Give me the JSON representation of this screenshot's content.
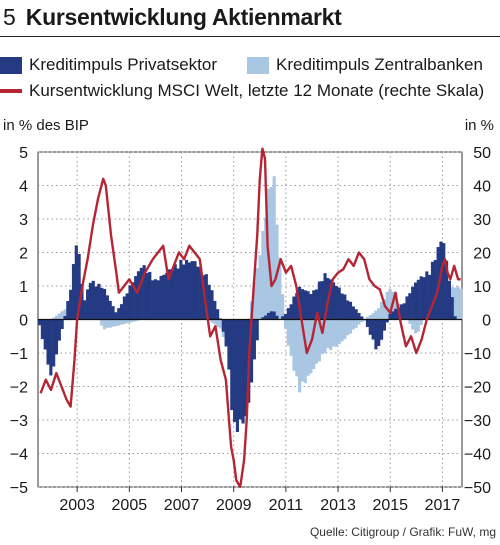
{
  "figure_number": "5",
  "title": "Kursentwicklung Aktienmarkt",
  "source": "Quelle: Citigroup / Grafik: FuW, mg",
  "colors": {
    "private": "#243a83",
    "central": "#a9c6e3",
    "msci": "#b62534",
    "grid": "#9a9a9a"
  },
  "chart_data": {
    "type": "bar+line",
    "title": "Kursentwicklung Aktienmarkt",
    "legend": {
      "private": "Kreditimpuls Privatsektor",
      "central": "Kreditimpuls Zentralbanken",
      "msci": "Kursentwicklung MSCI Welt, letzte 12 Monate (rechte Skala)"
    },
    "left_axis": {
      "label": "in % des BIP",
      "min": -5,
      "max": 5,
      "ticks": [
        5,
        4,
        3,
        2,
        1,
        0,
        -1,
        -2,
        -3,
        -4,
        -5
      ]
    },
    "right_axis": {
      "label": "in %",
      "min": -50,
      "max": 50,
      "ticks": [
        50,
        40,
        30,
        20,
        10,
        0,
        -10,
        -20,
        -30,
        -40,
        -50
      ]
    },
    "x_axis": {
      "min": 2001.5,
      "max": 2017.75,
      "tick_labels": [
        "2003",
        "2005",
        "2007",
        "2009",
        "2011",
        "2013",
        "2015",
        "2017"
      ],
      "tick_values": [
        2003,
        2005,
        2007,
        2009,
        2011,
        2013,
        2015,
        2017
      ]
    },
    "grid": true,
    "series": [
      {
        "key": "private",
        "name": "Kreditimpuls Privatsektor",
        "kind": "bar",
        "points": [
          [
            2001.5,
            0.0
          ],
          [
            2002.0,
            -1.8
          ],
          [
            2002.5,
            0.0
          ],
          [
            2002.75,
            1.0
          ],
          [
            2003.0,
            2.6
          ],
          [
            2003.25,
            0.5
          ],
          [
            2003.5,
            1.2
          ],
          [
            2004.0,
            1.0
          ],
          [
            2004.5,
            0.2
          ],
          [
            2005.0,
            1.0
          ],
          [
            2005.5,
            1.7
          ],
          [
            2006.0,
            1.2
          ],
          [
            2006.5,
            1.5
          ],
          [
            2007.0,
            1.8
          ],
          [
            2007.5,
            1.8
          ],
          [
            2008.0,
            1.3
          ],
          [
            2008.5,
            0.0
          ],
          [
            2008.75,
            -1.0
          ],
          [
            2009.0,
            -3.5
          ],
          [
            2009.5,
            -3.0
          ],
          [
            2009.75,
            -1.5
          ],
          [
            2010.0,
            0.0
          ],
          [
            2010.5,
            0.3
          ],
          [
            2010.75,
            0.0
          ],
          [
            2011.0,
            0.2
          ],
          [
            2011.5,
            1.0
          ],
          [
            2012.0,
            0.8
          ],
          [
            2012.5,
            1.4
          ],
          [
            2013.0,
            1.0
          ],
          [
            2013.5,
            0.5
          ],
          [
            2014.0,
            0.0
          ],
          [
            2014.5,
            -1.0
          ],
          [
            2015.0,
            0.2
          ],
          [
            2015.5,
            0.5
          ],
          [
            2016.0,
            1.2
          ],
          [
            2016.5,
            1.5
          ],
          [
            2016.75,
            2.0
          ],
          [
            2017.0,
            2.6
          ],
          [
            2017.25,
            1.3
          ],
          [
            2017.5,
            0.0
          ]
        ]
      },
      {
        "key": "central",
        "name": "Kreditimpuls Zentralbanken",
        "kind": "bar",
        "points": [
          [
            2001.5,
            0.0
          ],
          [
            2002.0,
            0.0
          ],
          [
            2002.5,
            0.3
          ],
          [
            2003.0,
            0.6
          ],
          [
            2003.5,
            0.5
          ],
          [
            2004.0,
            -0.3
          ],
          [
            2004.5,
            -0.2
          ],
          [
            2005.0,
            -0.1
          ],
          [
            2005.5,
            0.0
          ],
          [
            2006.0,
            0.2
          ],
          [
            2006.5,
            0.0
          ],
          [
            2007.0,
            0.0
          ],
          [
            2007.5,
            0.2
          ],
          [
            2008.0,
            0.0
          ],
          [
            2008.5,
            -0.3
          ],
          [
            2009.0,
            -1.5
          ],
          [
            2009.5,
            -0.5
          ],
          [
            2009.75,
            1.0
          ],
          [
            2010.0,
            2.0
          ],
          [
            2010.25,
            3.5
          ],
          [
            2010.5,
            4.8
          ],
          [
            2010.75,
            2.0
          ],
          [
            2011.0,
            -0.5
          ],
          [
            2011.5,
            -2.2
          ],
          [
            2012.0,
            -1.6
          ],
          [
            2012.5,
            -1.0
          ],
          [
            2013.0,
            -0.8
          ],
          [
            2013.5,
            -0.4
          ],
          [
            2014.0,
            0.0
          ],
          [
            2014.5,
            0.3
          ],
          [
            2015.0,
            1.0
          ],
          [
            2015.5,
            0.2
          ],
          [
            2016.0,
            -0.5
          ],
          [
            2016.5,
            0.4
          ],
          [
            2017.0,
            1.0
          ],
          [
            2017.5,
            1.0
          ]
        ]
      },
      {
        "key": "msci",
        "name": "Kursentwicklung MSCI Welt, letzte 12 Monate",
        "kind": "line",
        "axis": "right",
        "points": [
          [
            2001.6,
            -22
          ],
          [
            2001.8,
            -18
          ],
          [
            2002.0,
            -21
          ],
          [
            2002.2,
            -16
          ],
          [
            2002.4,
            -20
          ],
          [
            2002.6,
            -24
          ],
          [
            2002.75,
            -26
          ],
          [
            2002.9,
            -12
          ],
          [
            2003.0,
            0
          ],
          [
            2003.2,
            10
          ],
          [
            2003.4,
            18
          ],
          [
            2003.6,
            28
          ],
          [
            2003.8,
            36
          ],
          [
            2004.0,
            42
          ],
          [
            2004.1,
            40
          ],
          [
            2004.3,
            25
          ],
          [
            2004.5,
            14
          ],
          [
            2004.6,
            8
          ],
          [
            2004.8,
            10
          ],
          [
            2005.0,
            12
          ],
          [
            2005.3,
            8
          ],
          [
            2005.6,
            14
          ],
          [
            2005.9,
            18
          ],
          [
            2006.1,
            20
          ],
          [
            2006.3,
            22
          ],
          [
            2006.5,
            12
          ],
          [
            2006.7,
            16
          ],
          [
            2006.9,
            20
          ],
          [
            2007.1,
            18
          ],
          [
            2007.3,
            22
          ],
          [
            2007.5,
            20
          ],
          [
            2007.7,
            18
          ],
          [
            2007.9,
            6
          ],
          [
            2008.1,
            -5
          ],
          [
            2008.3,
            -2
          ],
          [
            2008.5,
            -12
          ],
          [
            2008.7,
            -18
          ],
          [
            2008.9,
            -38
          ],
          [
            2009.0,
            -42
          ],
          [
            2009.1,
            -48
          ],
          [
            2009.25,
            -50
          ],
          [
            2009.4,
            -42
          ],
          [
            2009.5,
            -30
          ],
          [
            2009.6,
            -10
          ],
          [
            2009.75,
            8
          ],
          [
            2009.9,
            25
          ],
          [
            2010.0,
            42
          ],
          [
            2010.1,
            51
          ],
          [
            2010.2,
            48
          ],
          [
            2010.3,
            22
          ],
          [
            2010.45,
            10
          ],
          [
            2010.6,
            12
          ],
          [
            2010.8,
            18
          ],
          [
            2011.0,
            14
          ],
          [
            2011.2,
            16
          ],
          [
            2011.4,
            10
          ],
          [
            2011.6,
            0
          ],
          [
            2011.8,
            -10
          ],
          [
            2012.0,
            -6
          ],
          [
            2012.2,
            2
          ],
          [
            2012.4,
            -4
          ],
          [
            2012.6,
            5
          ],
          [
            2012.8,
            12
          ],
          [
            2013.0,
            14
          ],
          [
            2013.2,
            15
          ],
          [
            2013.4,
            18
          ],
          [
            2013.6,
            16
          ],
          [
            2013.8,
            20
          ],
          [
            2014.0,
            18
          ],
          [
            2014.2,
            12
          ],
          [
            2014.4,
            10
          ],
          [
            2014.6,
            9
          ],
          [
            2014.8,
            4
          ],
          [
            2015.0,
            2
          ],
          [
            2015.2,
            8
          ],
          [
            2015.4,
            -1
          ],
          [
            2015.6,
            -8
          ],
          [
            2015.8,
            -5
          ],
          [
            2016.0,
            -10
          ],
          [
            2016.2,
            -6
          ],
          [
            2016.4,
            0
          ],
          [
            2016.6,
            4
          ],
          [
            2016.8,
            8
          ],
          [
            2017.0,
            16
          ],
          [
            2017.1,
            18
          ],
          [
            2017.2,
            14
          ],
          [
            2017.3,
            12
          ],
          [
            2017.45,
            16
          ],
          [
            2017.6,
            12
          ],
          [
            2017.7,
            12
          ]
        ]
      }
    ]
  }
}
